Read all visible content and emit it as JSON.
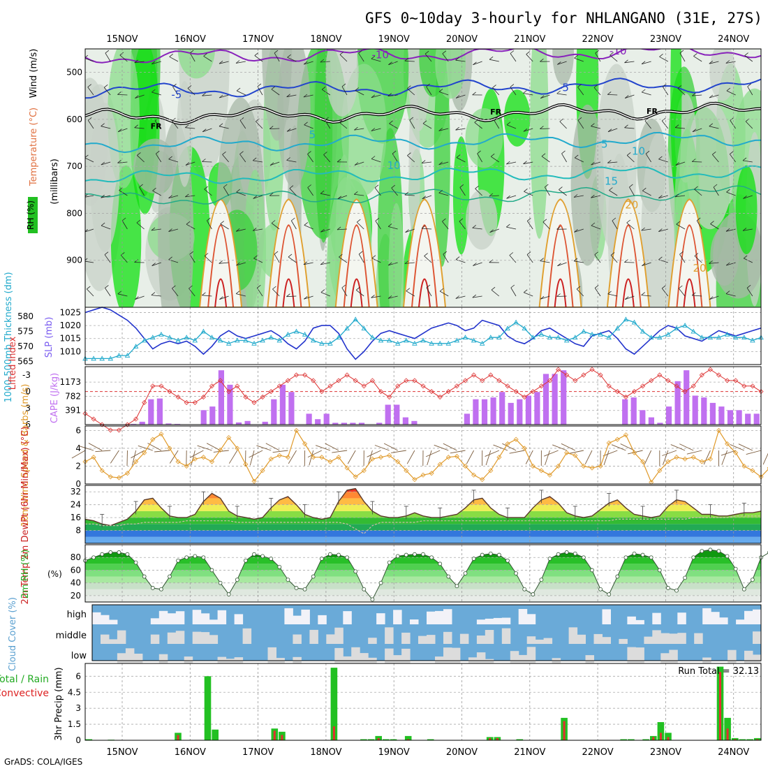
{
  "title": "GFS 0~10day 3-hourly for NHLANGANO (31E, 27S)",
  "footer": "GrADS: COLA/IGES",
  "dates": [
    "15NOV",
    "16NOV",
    "17NOV",
    "18NOV",
    "19NOV",
    "20NOV",
    "21NOV",
    "22NOV",
    "23NOV",
    "24NOV"
  ],
  "colors": {
    "green_rh": "#22c022",
    "blue_slp": "#2233cc",
    "cyan_thk": "#22aacc",
    "red_li": "#dd3333",
    "cape": "#c070f0",
    "orange_wind": "#e09a2a",
    "cloud_blue": "#6aaad8",
    "cloud_gray": "#dcdcdc",
    "precip_green": "#22c022",
    "precip_red": "#e03030"
  },
  "chart_data": [
    {
      "type": "heatmap",
      "panel": "upper-air",
      "labels": {
        "ylabel_rh": "RH (%)",
        "ylabel_temp": "Temperature (°C)",
        "ylabel_wind": "Wind (m/s)",
        "ylabel_mb": "(millibars)"
      },
      "y_ticks": [
        500,
        600,
        700,
        800,
        900
      ],
      "ylim": [
        1000,
        450
      ],
      "isotherm_labels": [
        {
          "text": "-10",
          "x_day": 3.8,
          "mb": 470
        },
        {
          "text": "-10",
          "x_day": 7.3,
          "mb": 462
        },
        {
          "text": "-5",
          "x_day": 0.8,
          "mb": 555
        },
        {
          "text": "-5",
          "x_day": 6.5,
          "mb": 540
        },
        {
          "text": "FR",
          "x_day": 0.5,
          "mb": 620
        },
        {
          "text": "FR",
          "x_day": 5.5,
          "mb": 590
        },
        {
          "text": "FR",
          "x_day": 7.8,
          "mb": 588
        },
        {
          "text": "5",
          "x_day": 2.8,
          "mb": 640
        },
        {
          "text": "5",
          "x_day": 7.1,
          "mb": 660
        },
        {
          "text": "10",
          "x_day": 4.0,
          "mb": 706
        },
        {
          "text": "10",
          "x_day": 7.6,
          "mb": 675
        },
        {
          "text": "15",
          "x_day": 7.2,
          "mb": 739
        },
        {
          "text": "20",
          "x_day": 7.5,
          "mb": 790
        },
        {
          "text": "20",
          "x_day": 8.5,
          "mb": 924
        }
      ]
    },
    {
      "type": "line",
      "panel": "slp-thickness",
      "labels": {
        "ylabel_left": "1000-500mb Thickness (dm)",
        "ylabel_right": "SLP (mb)"
      },
      "left_ticks": [
        565,
        570,
        575,
        580
      ],
      "right_ticks": [
        1010,
        1015,
        1020,
        1025
      ],
      "series": [
        {
          "name": "SLP (mb)",
          "values": [
            1025,
            1026,
            1027,
            1026,
            1024,
            1022,
            1019,
            1015,
            1011,
            1013,
            1014,
            1013,
            1014,
            1012,
            1009,
            1012,
            1016,
            1018,
            1016,
            1015,
            1016,
            1017,
            1018,
            1016,
            1013,
            1011,
            1014,
            1019,
            1020,
            1020,
            1017,
            1011,
            1007,
            1010,
            1014,
            1017,
            1018,
            1017,
            1016,
            1015,
            1017,
            1019,
            1020,
            1021,
            1020,
            1018,
            1019,
            1022,
            1021,
            1020,
            1016,
            1014,
            1013,
            1015,
            1018,
            1019,
            1017,
            1015,
            1013,
            1012,
            1016,
            1017,
            1018,
            1015,
            1011,
            1009,
            1012,
            1015,
            1018,
            1020,
            1019,
            1016,
            1015,
            1014,
            1016,
            1018,
            1017,
            1016,
            1017,
            1018,
            1019
          ]
        },
        {
          "name": "Thickness (dm)",
          "values": [
            566,
            566,
            566,
            566,
            567,
            567,
            570,
            572,
            573,
            574,
            573,
            572,
            573,
            572,
            575,
            573,
            572,
            571,
            572,
            572,
            571,
            572,
            573,
            572,
            574,
            575,
            574,
            572,
            571,
            571,
            573,
            576,
            579,
            576,
            573,
            572,
            572,
            571,
            572,
            571,
            572,
            571,
            571,
            571,
            572,
            573,
            572,
            571,
            573,
            573,
            576,
            578,
            576,
            573,
            574,
            573,
            573,
            572,
            573,
            575,
            574,
            574,
            573,
            576,
            579,
            578,
            575,
            573,
            573,
            574,
            576,
            577,
            575,
            573,
            573,
            573,
            574,
            573,
            573,
            572,
            573
          ]
        }
      ]
    },
    {
      "type": "bar",
      "panel": "cape-li",
      "labels": {
        "ylabel_left": "Lifted Index",
        "ylabel_right": "CAPE (J/kg)"
      },
      "li_ticks": [
        -3,
        0,
        3,
        6
      ],
      "cape_ticks": [
        391,
        782,
        1173
      ],
      "series": [
        {
          "name": "Lifted Index",
          "values": [
            4,
            5,
            6,
            7,
            7,
            6,
            5,
            2,
            -1,
            -1,
            0,
            1,
            2,
            2,
            1,
            -1,
            -2,
            0,
            -1,
            1,
            2,
            1,
            0,
            -1,
            -2,
            -3,
            -3,
            -2,
            0,
            -1,
            -2,
            -3,
            -2,
            -1,
            -2,
            0,
            1,
            -1,
            -2,
            -2,
            -1,
            0,
            1,
            0,
            -1,
            -2,
            -3,
            -2,
            -3,
            -2,
            -1,
            0,
            1,
            0,
            -1,
            -2,
            -4,
            -3,
            -2,
            -3,
            -4,
            -3,
            -1,
            0,
            1,
            0,
            -1,
            -2,
            -3,
            -2,
            -1,
            0,
            -1,
            -3,
            -4,
            -3,
            -2,
            -2,
            -1,
            -1,
            0
          ]
        },
        {
          "name": "CAPE (J/kg)",
          "values": [
            0,
            0,
            0,
            0,
            0,
            20,
            80,
            700,
            720,
            30,
            20,
            0,
            10,
            400,
            500,
            1500,
            1100,
            60,
            100,
            0,
            80,
            700,
            1100,
            900,
            0,
            300,
            150,
            300,
            50,
            50,
            50,
            50,
            0,
            50,
            550,
            550,
            200,
            100,
            0,
            0,
            0,
            0,
            10,
            300,
            700,
            700,
            750,
            900,
            600,
            700,
            800,
            900,
            1400,
            1400,
            1500,
            0,
            0,
            0,
            0,
            0,
            0,
            700,
            750,
            400,
            200,
            50,
            500,
            1200,
            1500,
            800,
            750,
            600,
            500,
            400,
            400,
            300,
            300
          ]
        }
      ]
    },
    {
      "type": "line",
      "panel": "wind10m",
      "labels": {
        "ylabel": "10m Wind Speed & Barbs (m/s)"
      },
      "y_ticks": [
        0,
        2,
        4,
        6
      ],
      "ylim": [
        0,
        6.5
      ],
      "series": [
        {
          "name": "10m Wind Speed",
          "values": [
            2.5,
            3,
            1.5,
            0.8,
            0.7,
            1.2,
            2.5,
            3.5,
            5,
            5.6,
            4,
            2.5,
            2,
            2.8,
            3,
            2.5,
            3.8,
            5.2,
            4,
            2.2,
            0.3,
            1.5,
            2.8,
            3.2,
            3,
            6,
            4.5,
            3,
            3,
            2.5,
            3,
            1.8,
            0.8,
            1.5,
            2.8,
            3,
            3.2,
            2.5,
            1.5,
            0.5,
            1,
            1.2,
            2.2,
            3,
            3.1,
            2,
            1,
            0.5,
            1.5,
            3,
            4.5,
            5,
            4,
            2,
            1.5,
            1,
            2,
            3.5,
            3.2,
            2,
            1.8,
            2,
            4.6,
            5,
            5.5,
            3.5,
            2.5,
            0.2,
            1.5,
            2.5,
            3,
            2.8,
            3,
            2.5,
            2.8,
            6,
            4.5,
            3.5,
            2,
            1.5,
            0.8,
            1.8
          ]
        }
      ]
    },
    {
      "type": "area",
      "panel": "temp2m",
      "labels": {
        "ylabel": "2m Temp 2m DewPt (6hr Min/Max) (°C)"
      },
      "y_ticks": [
        8,
        16,
        24,
        32
      ],
      "ylim": [
        0,
        36
      ],
      "series": [
        {
          "name": "2m Temp",
          "values": [
            15,
            14,
            12,
            11,
            13,
            15,
            20,
            27,
            28,
            22,
            17,
            16,
            16,
            18,
            26,
            31,
            28,
            20,
            17,
            16,
            15,
            16,
            22,
            27,
            29,
            24,
            18,
            16,
            15,
            16,
            26,
            33,
            34,
            26,
            20,
            17,
            16,
            16,
            17,
            19,
            17,
            16,
            16,
            17,
            18,
            22,
            27,
            28,
            22,
            18,
            16,
            16,
            16,
            22,
            27,
            29,
            25,
            19,
            17,
            16,
            17,
            21,
            25,
            27,
            22,
            18,
            17,
            16,
            17,
            23,
            27,
            26,
            22,
            18,
            18,
            17,
            17,
            18,
            19,
            19,
            20
          ]
        },
        {
          "name": "2m DewPt",
          "values": [
            12,
            12,
            11,
            11,
            11,
            12,
            12,
            13,
            13,
            13,
            13,
            13,
            14,
            14,
            14,
            14,
            14,
            14,
            13,
            13,
            13,
            13,
            13,
            13,
            13,
            13,
            13,
            13,
            13,
            13,
            13,
            12,
            9,
            6,
            11,
            13,
            13,
            13,
            13,
            13,
            14,
            14,
            14,
            14,
            14,
            14,
            14,
            14,
            14,
            14,
            14,
            14,
            14,
            14,
            14,
            14,
            14,
            14,
            14,
            14,
            14,
            14,
            14,
            15,
            15,
            15,
            15,
            15,
            15,
            15,
            15,
            15,
            16,
            16,
            16,
            16,
            16,
            17,
            17,
            17,
            17
          ]
        }
      ]
    },
    {
      "type": "area",
      "panel": "rh2m",
      "labels": {
        "ylabel": "2m RH (%)"
      },
      "y_ticks": [
        20,
        40,
        60,
        80
      ],
      "ylim": [
        10,
        100
      ],
      "series": [
        {
          "name": "2m RH",
          "values": [
            75,
            80,
            85,
            88,
            88,
            85,
            72,
            50,
            32,
            30,
            50,
            75,
            80,
            82,
            80,
            60,
            40,
            22,
            45,
            75,
            85,
            82,
            78,
            65,
            45,
            32,
            30,
            50,
            78,
            85,
            84,
            80,
            58,
            30,
            14,
            40,
            72,
            82,
            84,
            85,
            85,
            80,
            70,
            50,
            35,
            55,
            78,
            84,
            86,
            84,
            75,
            55,
            30,
            22,
            45,
            78,
            85,
            88,
            86,
            80,
            60,
            30,
            22,
            50,
            80,
            86,
            84,
            80,
            60,
            32,
            28,
            48,
            80,
            90,
            92,
            90,
            82,
            62,
            30,
            45,
            80,
            88,
            92,
            90,
            85
          ]
        }
      ]
    },
    {
      "type": "heatmap",
      "panel": "cloud",
      "labels": {
        "ylabel": "Cloud Cover (%)",
        "rows": [
          "high",
          "middle",
          "low"
        ]
      }
    },
    {
      "type": "bar",
      "panel": "precip",
      "labels": {
        "ylabel": "3hr Precip (mm)",
        "legend_total": "Total / Rain",
        "legend_conv": "Convective",
        "run_total": "Run Total = 32.13"
      },
      "y_ticks": [
        0,
        1.5,
        3,
        4.5,
        6
      ],
      "ylim": [
        0,
        7.2
      ],
      "series": [
        {
          "name": "Total",
          "values": [
            0.1,
            0,
            0,
            0.05,
            0,
            0,
            0,
            0,
            0,
            0,
            0,
            0,
            0.7,
            0,
            0,
            0,
            6,
            1,
            0,
            0,
            0,
            0,
            0,
            0,
            0,
            1.1,
            0.8,
            0,
            0,
            0,
            0,
            0,
            0,
            6.8,
            0,
            0,
            0,
            0.1,
            0.1,
            0.4,
            0.1,
            0.1,
            0,
            0.4,
            0,
            0,
            0.1,
            0,
            0,
            0,
            0,
            0,
            0,
            0,
            0.3,
            0.3,
            0,
            0,
            0.1,
            0,
            0,
            0,
            0,
            0,
            2.1,
            0,
            0,
            0,
            0,
            0,
            0,
            0,
            0.1,
            0.1,
            0,
            0.1,
            0.4,
            1.7,
            0.7,
            0,
            0,
            0,
            0,
            0,
            0,
            6.9,
            2.1,
            0.2,
            0.1,
            0.1,
            0.2
          ]
        },
        {
          "name": "Convective",
          "values": [
            0,
            0,
            0,
            0,
            0,
            0,
            0,
            0,
            0,
            0,
            0,
            0,
            0.5,
            0,
            0,
            0,
            0,
            0,
            0,
            0,
            0,
            0,
            0,
            0,
            0,
            0.9,
            0.5,
            0,
            0,
            0,
            0,
            0,
            0,
            1.3,
            0,
            0,
            0,
            0,
            0,
            0.2,
            0,
            0,
            0,
            0.1,
            0,
            0,
            0,
            0,
            0,
            0,
            0,
            0,
            0,
            0,
            0.2,
            0.2,
            0,
            0,
            0,
            0,
            0,
            0,
            0,
            0,
            1.8,
            0,
            0,
            0,
            0,
            0,
            0,
            0,
            0,
            0,
            0,
            0,
            0.3,
            0.7,
            0.3,
            0,
            0,
            0,
            0,
            0,
            0,
            6.4,
            1.1,
            0.1,
            0,
            0,
            0.1
          ]
        }
      ]
    }
  ]
}
